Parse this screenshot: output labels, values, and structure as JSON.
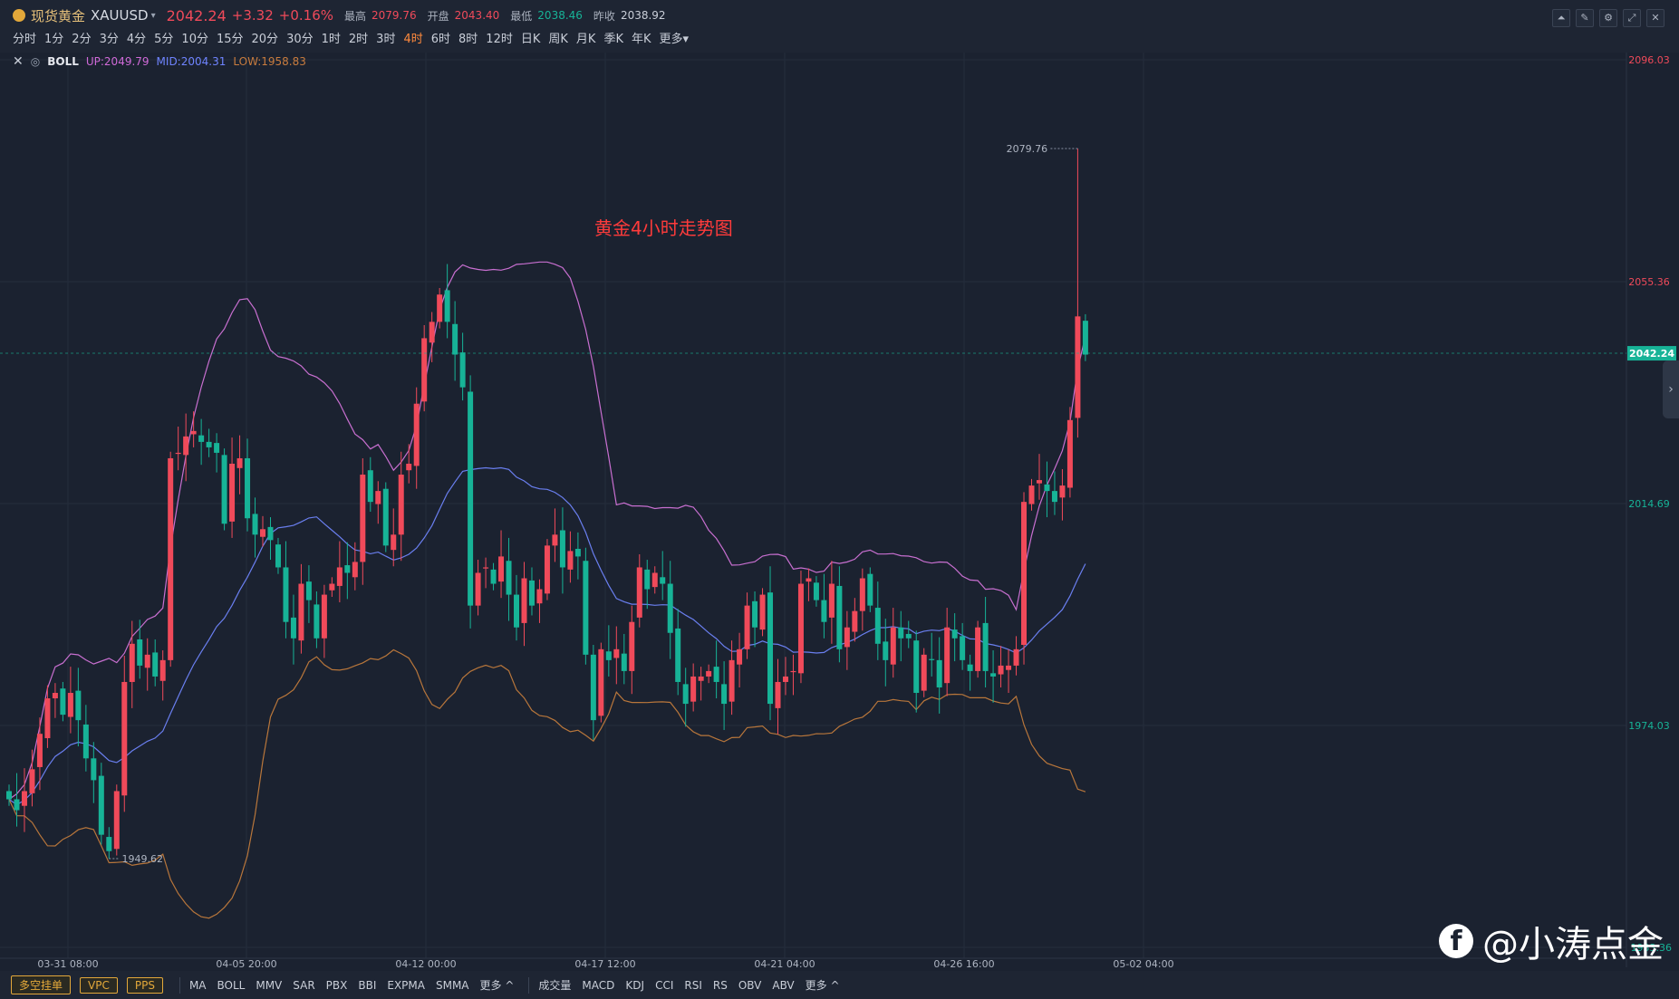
{
  "ticker": {
    "name": "现货黄金",
    "symbol": "XAUUSD",
    "price": "2042.24",
    "change": "+3.32",
    "change_pct": "+0.16%",
    "high_label": "最高",
    "high_value": "2079.76",
    "open_label": "开盘",
    "open_value": "2043.40",
    "low_label": "最低",
    "low_value": "2038.46",
    "prev_label": "昨收",
    "prev_value": "2038.92"
  },
  "periods": [
    {
      "label": "分时"
    },
    {
      "label": "1分"
    },
    {
      "label": "2分"
    },
    {
      "label": "3分"
    },
    {
      "label": "4分"
    },
    {
      "label": "5分"
    },
    {
      "label": "10分"
    },
    {
      "label": "15分"
    },
    {
      "label": "20分"
    },
    {
      "label": "30分"
    },
    {
      "label": "1时"
    },
    {
      "label": "2时"
    },
    {
      "label": "3时"
    },
    {
      "label": "4时",
      "active": true
    },
    {
      "label": "6时"
    },
    {
      "label": "8时"
    },
    {
      "label": "12时"
    },
    {
      "label": "日K"
    },
    {
      "label": "周K"
    },
    {
      "label": "月K"
    },
    {
      "label": "季K"
    },
    {
      "label": "年K"
    },
    {
      "label": "更多"
    }
  ],
  "periods_more_caret": "▾",
  "window_buttons": [
    {
      "icon": "line-chart-icon",
      "glyph": "⏶"
    },
    {
      "icon": "draw-icon",
      "glyph": "✎"
    },
    {
      "icon": "settings-icon",
      "glyph": "⚙"
    },
    {
      "icon": "fullscreen-icon",
      "glyph": "⤢"
    },
    {
      "icon": "close-icon",
      "glyph": "✕"
    }
  ],
  "legend": {
    "close_glyph": "✕",
    "eye_glyph": "◎",
    "name": "BOLL",
    "up": "UP:2049.79",
    "mid": "MID:2004.31",
    "low": "LOW:1958.83"
  },
  "annotation": "黄金4小时走势图",
  "bottom": {
    "tags": [
      "多空挂单",
      "VPC",
      "PPS"
    ],
    "main_indicators": [
      "MA",
      "BOLL",
      "MMV",
      "SAR",
      "PBX",
      "BBI",
      "EXPMA",
      "SMMA",
      "更多 ^"
    ],
    "sub_indicators": [
      "成交量",
      "MACD",
      "KDJ",
      "CCI",
      "RSI",
      "RS",
      "OBV",
      "ABV",
      "更多 ^"
    ]
  },
  "watermark": "@小涛点金",
  "watermark_icon": "f",
  "side_handle_glyph": "›",
  "colors": {
    "up": "#f04a5a",
    "down": "#17b397",
    "boll_up": "#c86fd0",
    "boll_mid": "#6a7ff0",
    "boll_low": "#b8763b",
    "grid": "#242d3c",
    "background": "#1b2230"
  },
  "chart_data": {
    "type": "candlestick",
    "interval": "4时",
    "y_ticks": [
      2096.03,
      2055.36,
      2014.69,
      1974.03,
      1933.36
    ],
    "y_tick_labels": [
      "2096.03",
      "2055.36",
      "2014.69",
      "1974.03",
      "2042.24",
      "1933.36"
    ],
    "last_price": 2042.24,
    "last_price_label": "2042.24",
    "x_labels": [
      "03-31 08:00",
      "04-05 20:00",
      "04-12 00:00",
      "04-17 12:00",
      "04-21 04:00",
      "04-26 16:00",
      "05-02 04:00"
    ],
    "max_marker": {
      "value": 2079.76,
      "label": "2079.76"
    },
    "min_marker": {
      "value": 1949.62,
      "label": "1949.62"
    },
    "boll_last": {
      "up": 2049.79,
      "mid": 2004.31,
      "low": 1958.83
    },
    "closes": [
      1960.5,
      1958.5,
      1962,
      1966,
      1972.5,
      1979,
      1980,
      1976,
      1980,
      1975,
      1968,
      1964,
      1954,
      1951,
      1962,
      1982,
      1989,
      1985,
      1987,
      1983,
      1986,
      2023,
      2024,
      2027,
      2028,
      2026,
      2025,
      2024,
      2011,
      2022,
      2023,
      2012,
      2009,
      2010,
      2008,
      2003,
      1993,
      1990,
      2000,
      1997,
      1990,
      1998,
      2000,
      2003,
      2002,
      2004,
      2020,
      2015,
      2017,
      2007,
      2009,
      2020,
      2022,
      2033,
      2045,
      2048,
      2053,
      2048,
      2042,
      2036,
      1996,
      2002,
      2003,
      2000,
      2005,
      1998,
      1992,
      2001,
      1996,
      1999,
      2007,
      2009,
      2003,
      2006,
      2005,
      1987,
      1975,
      1988,
      1986,
      1988,
      1984,
      1993,
      2003,
      1999,
      2002,
      2000,
      1991,
      1982,
      1978,
      1983,
      1983,
      1984,
      1982,
      1978,
      1986,
      1988,
      1996,
      1992,
      1998,
      1978,
      1982,
      1983,
      1984,
      2000,
      2001,
      1997,
      1993,
      2000,
      1988,
      1992,
      1995,
      2001,
      1996,
      1989,
      1986,
      1992,
      1990,
      1990,
      1980,
      1987,
      1986,
      1981,
      1992,
      1990,
      1986,
      1984,
      1992,
      1984,
      1983,
      1985,
      1985,
      1988,
      2015,
      2018,
      2019,
      2017,
      2015,
      2018,
      2030,
      2049,
      2042
    ]
  }
}
